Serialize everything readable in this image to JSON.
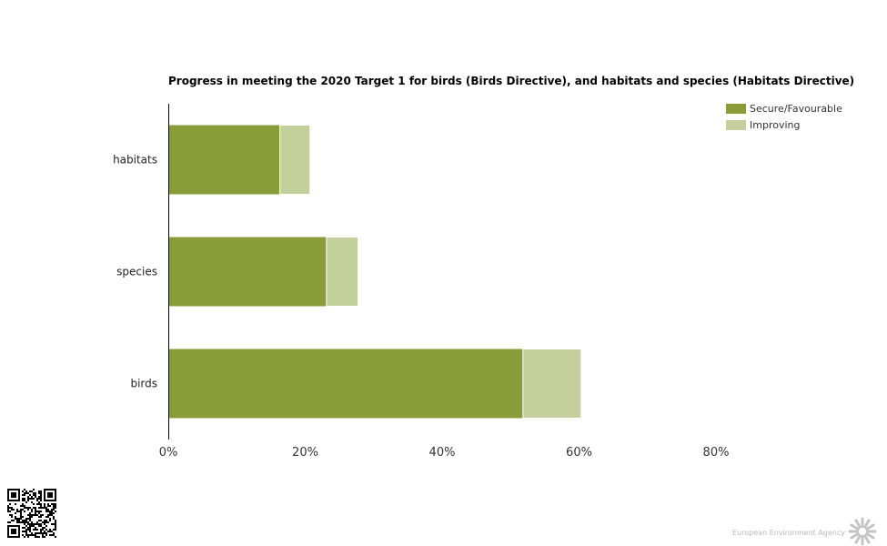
{
  "chart_data": {
    "type": "bar",
    "orientation": "horizontal",
    "stacked": true,
    "title": "Progress in meeting the 2020 Target 1 for birds (Birds Directive), and habitats and species (Habitats Directive)",
    "categories": [
      "habitats",
      "species",
      "birds"
    ],
    "series": [
      {
        "name": "Secure/Favourable",
        "color": "#8a9c3a",
        "values": [
          16.3,
          23.1,
          51.8
        ]
      },
      {
        "name": "Improving",
        "color": "#c3d09c",
        "values": [
          4.4,
          4.6,
          8.5
        ]
      }
    ],
    "x_unit": "%",
    "xlim": [
      0,
      80
    ],
    "x_ticks": [
      0,
      20,
      40,
      60,
      80
    ],
    "x_tick_labels": [
      "0%",
      "20%",
      "40%",
      "60%",
      "80%"
    ],
    "grid": false,
    "legend_position": "top-right"
  },
  "footer": {
    "brand": "European Environment Agency",
    "qr_icon": "qr-code-icon",
    "logo_icon": "eea-sun-logo-icon"
  }
}
